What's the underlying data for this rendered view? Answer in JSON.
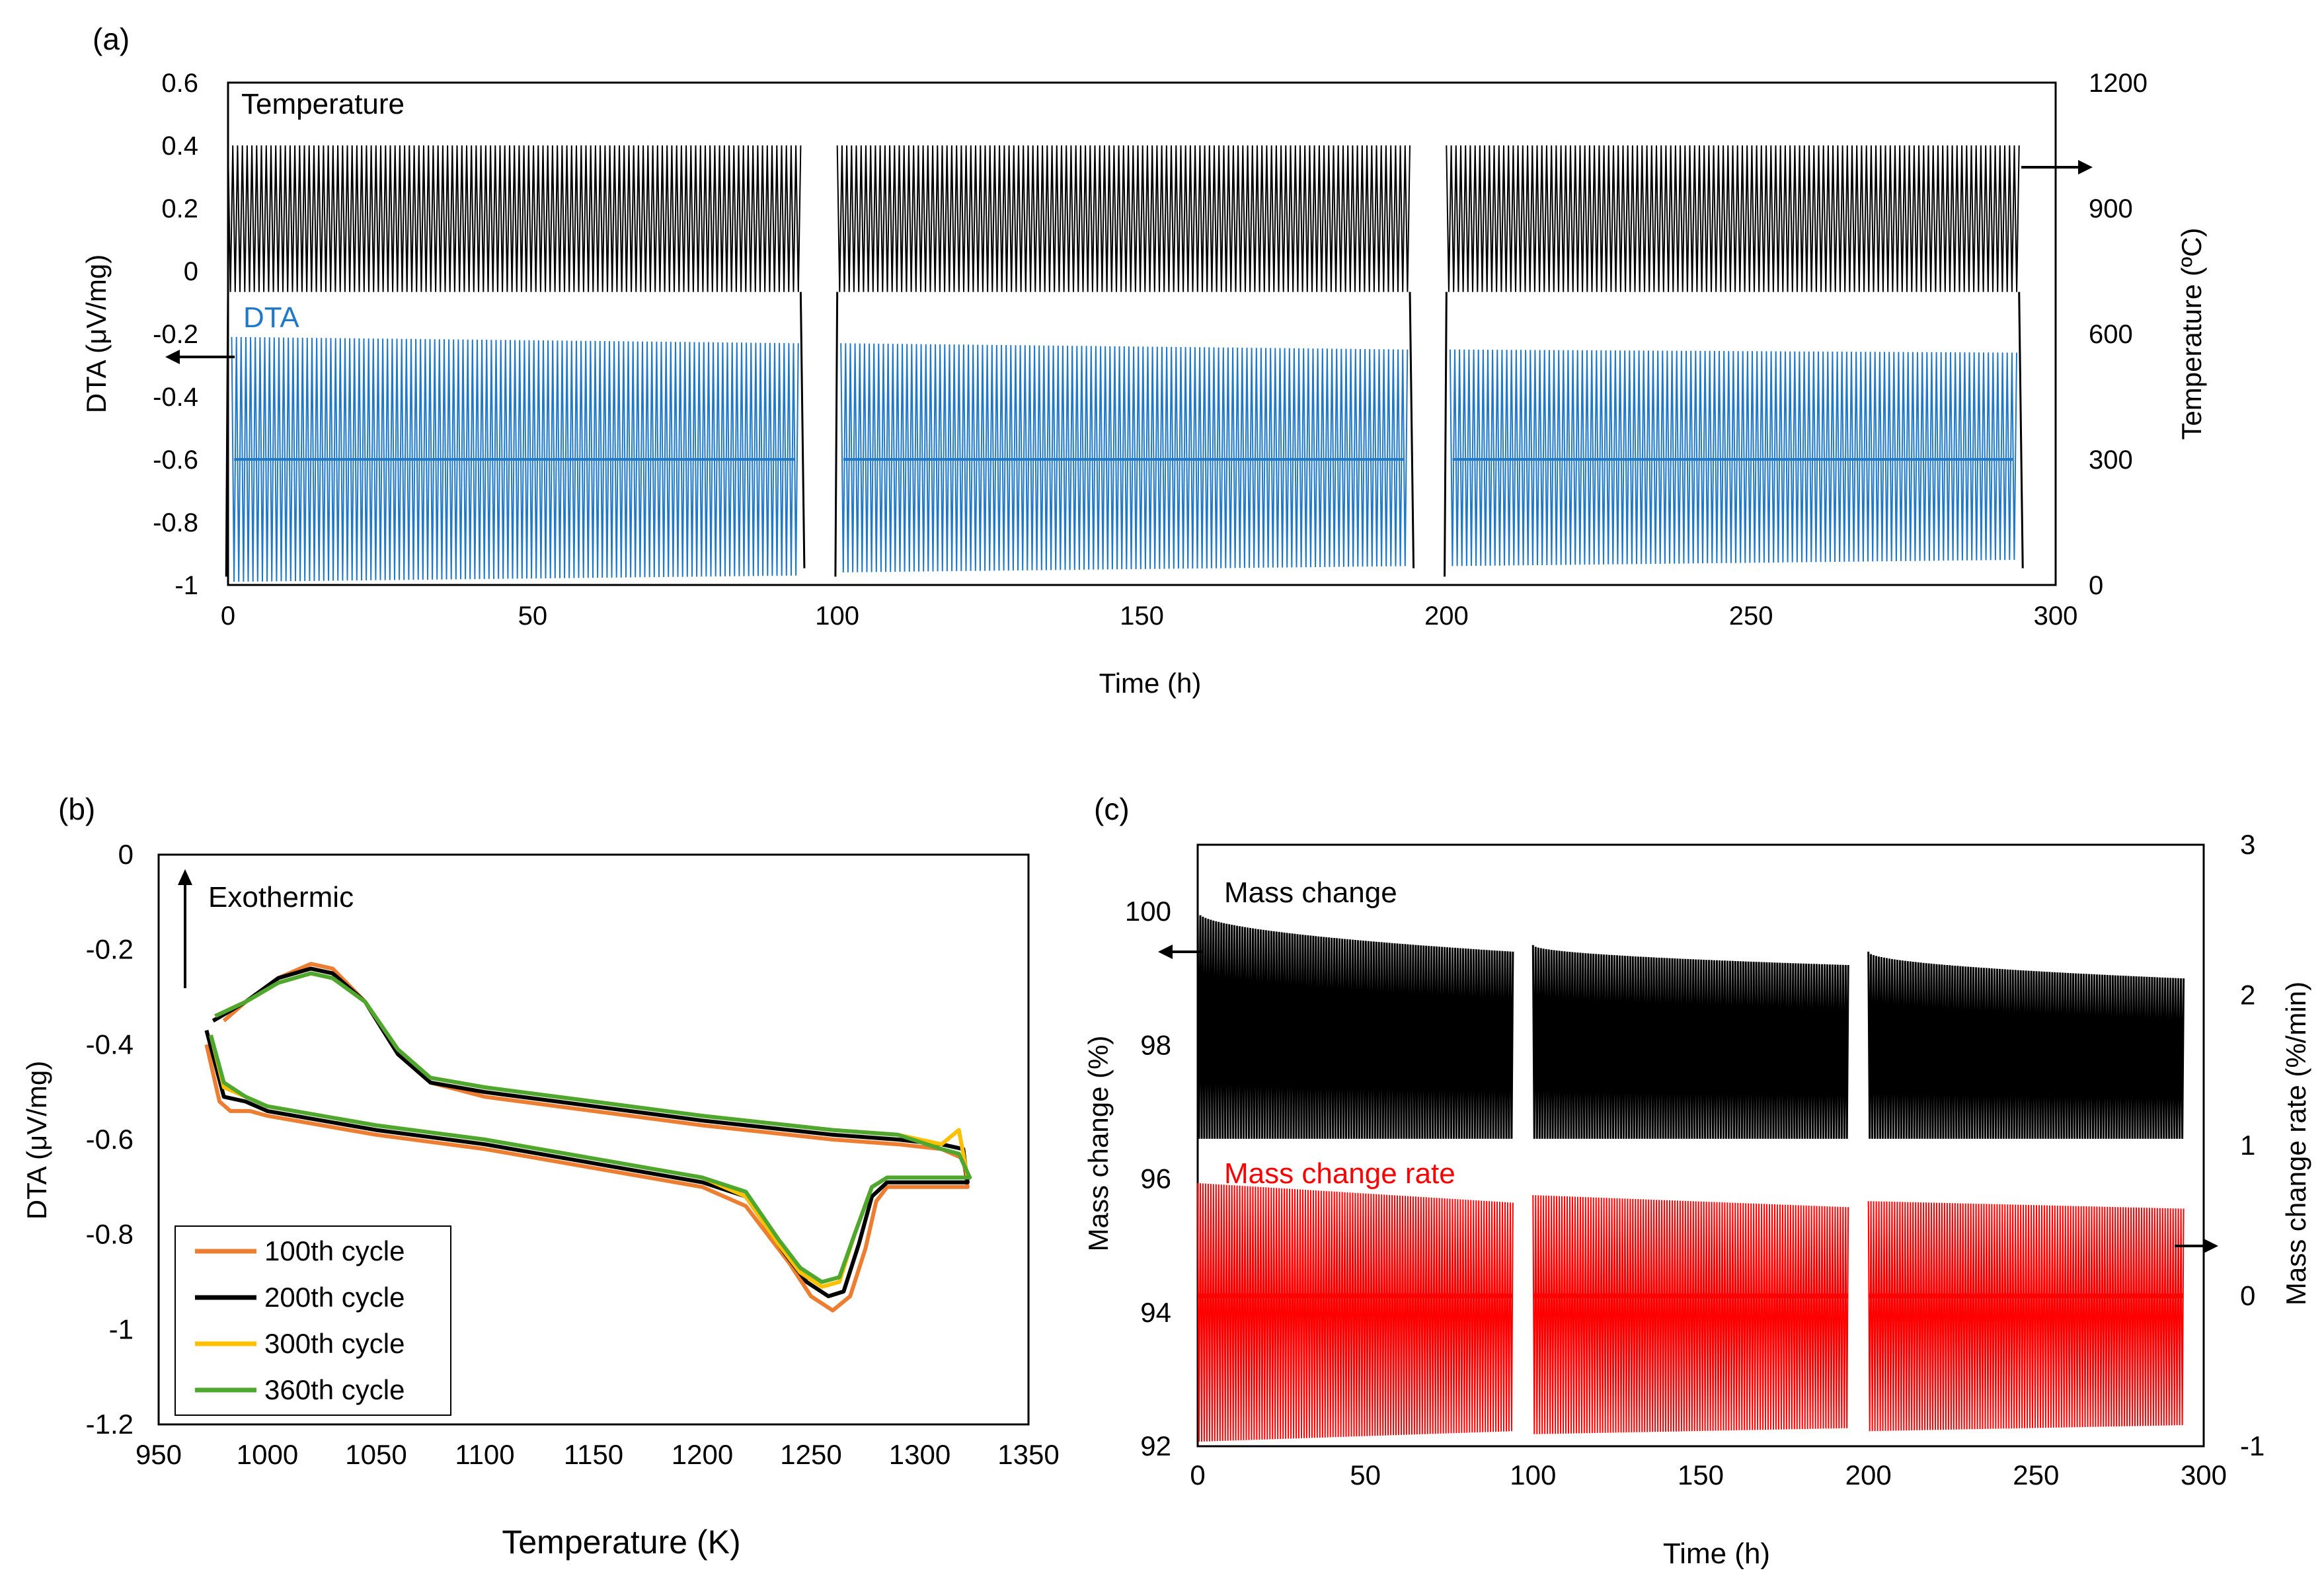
{
  "figure": {
    "panel_labels": [
      "(a)",
      "(b)",
      "(c)"
    ]
  },
  "colors": {
    "black": "#000000",
    "blue": "#1f78c8",
    "red": "#ff0000",
    "orange": "#ed7d31",
    "yellow": "#ffc000",
    "green": "#4ea72e"
  },
  "chart_data": [
    {
      "id": "a",
      "type": "line",
      "title": "",
      "xlabel": "Time (h)",
      "ylabel": "DTA (μV/mg)",
      "y2label": "Temperature (ºC)",
      "xlim": [
        0,
        300
      ],
      "ylim": [
        -1,
        0.6
      ],
      "y2lim": [
        0,
        1200
      ],
      "xticks": [
        "0",
        "50",
        "100",
        "150",
        "200",
        "250",
        "300"
      ],
      "yticks": [
        "-1",
        "-0.8",
        "-0.6",
        "-0.4",
        "-0.2",
        "0",
        "0.2",
        "0.4",
        "0.6"
      ],
      "y2ticks": [
        "0",
        "300",
        "600",
        "900",
        "1200"
      ],
      "segments": [
        [
          0,
          94
        ],
        [
          100,
          194
        ],
        [
          200,
          294
        ]
      ],
      "series": [
        {
          "name": "Temperature",
          "axis": "y2",
          "color": "#000000",
          "cycles_per_segment": 120,
          "high": 1050,
          "low": 700,
          "start_offset_h": 0.5
        },
        {
          "name": "DTA",
          "axis": "y",
          "color": "#1f78c8",
          "cycles_per_segment": 120,
          "max_start": [
            -0.21,
            -0.23,
            -0.25
          ],
          "max_end": [
            -0.23,
            -0.25,
            -0.26
          ],
          "min_start": [
            -0.99,
            -0.96,
            -0.94
          ],
          "min_end": [
            -0.97,
            -0.94,
            -0.92
          ],
          "mid": -0.6
        }
      ],
      "annotations": [
        {
          "text": "Temperature",
          "color": "#000000"
        },
        {
          "text": "DTA",
          "color": "#1f78c8"
        }
      ]
    },
    {
      "id": "b",
      "type": "line",
      "title": "",
      "xlabel": "Temperature (K)",
      "ylabel": "DTA (μV/mg)",
      "xlim": [
        950,
        1350
      ],
      "ylim": [
        -1.2,
        0
      ],
      "xticks": [
        "950",
        "1000",
        "1050",
        "1100",
        "1150",
        "1200",
        "1250",
        "1300",
        "1350"
      ],
      "yticks": [
        "-1.2",
        "-1",
        "-0.8",
        "-0.6",
        "-0.4",
        "-0.2",
        "0"
      ],
      "annotation": "Exothermic",
      "legend_position": "bottom-left",
      "series": [
        {
          "name": "100th cycle",
          "color": "#ed7d31",
          "x": [
            980,
            990,
            1005,
            1020,
            1030,
            1045,
            1060,
            1075,
            1100,
            1150,
            1200,
            1260,
            1290,
            1310,
            1320,
            1322,
            1318,
            1300,
            1285,
            1280,
            1275,
            1268,
            1260,
            1250,
            1240,
            1220,
            1200,
            1150,
            1100,
            1050,
            1000,
            992,
            983,
            978,
            972
          ],
          "y": [
            -0.35,
            -0.31,
            -0.26,
            -0.23,
            -0.24,
            -0.31,
            -0.42,
            -0.48,
            -0.51,
            -0.54,
            -0.57,
            -0.6,
            -0.61,
            -0.62,
            -0.64,
            -0.7,
            -0.7,
            -0.7,
            -0.7,
            -0.73,
            -0.83,
            -0.93,
            -0.96,
            -0.93,
            -0.86,
            -0.74,
            -0.7,
            -0.66,
            -0.62,
            -0.59,
            -0.55,
            -0.54,
            -0.54,
            -0.52,
            -0.4
          ]
        },
        {
          "name": "200th cycle",
          "color": "#000000",
          "x": [
            975,
            990,
            1005,
            1020,
            1030,
            1045,
            1060,
            1075,
            1100,
            1150,
            1200,
            1260,
            1290,
            1310,
            1320,
            1322,
            1318,
            1300,
            1285,
            1278,
            1272,
            1265,
            1258,
            1248,
            1238,
            1220,
            1200,
            1150,
            1100,
            1050,
            1000,
            990,
            980,
            972
          ],
          "y": [
            -0.35,
            -0.31,
            -0.26,
            -0.24,
            -0.25,
            -0.31,
            -0.42,
            -0.48,
            -0.5,
            -0.53,
            -0.56,
            -0.59,
            -0.6,
            -0.61,
            -0.62,
            -0.69,
            -0.69,
            -0.69,
            -0.69,
            -0.72,
            -0.82,
            -0.92,
            -0.93,
            -0.9,
            -0.84,
            -0.72,
            -0.69,
            -0.65,
            -0.61,
            -0.58,
            -0.54,
            -0.52,
            -0.51,
            -0.37
          ]
        },
        {
          "name": "300th cycle",
          "color": "#ffc000",
          "x": [
            976,
            990,
            1005,
            1020,
            1030,
            1045,
            1060,
            1075,
            1100,
            1150,
            1200,
            1260,
            1290,
            1310,
            1318,
            1322,
            1318,
            1300,
            1285,
            1278,
            1270,
            1263,
            1255,
            1245,
            1235,
            1220,
            1200,
            1150,
            1100,
            1050,
            1000,
            990,
            980,
            974
          ],
          "y": [
            -0.34,
            -0.31,
            -0.27,
            -0.25,
            -0.26,
            -0.31,
            -0.41,
            -0.47,
            -0.49,
            -0.52,
            -0.55,
            -0.58,
            -0.59,
            -0.61,
            -0.58,
            -0.68,
            -0.68,
            -0.68,
            -0.68,
            -0.7,
            -0.8,
            -0.9,
            -0.91,
            -0.88,
            -0.82,
            -0.72,
            -0.68,
            -0.64,
            -0.6,
            -0.57,
            -0.53,
            -0.51,
            -0.49,
            -0.38
          ]
        },
        {
          "name": "360th cycle",
          "color": "#4ea72e",
          "x": [
            976,
            990,
            1005,
            1020,
            1030,
            1045,
            1060,
            1075,
            1100,
            1150,
            1200,
            1260,
            1290,
            1310,
            1318,
            1323,
            1318,
            1300,
            1285,
            1278,
            1270,
            1263,
            1255,
            1245,
            1235,
            1220,
            1200,
            1150,
            1100,
            1050,
            1000,
            990,
            980,
            974
          ],
          "y": [
            -0.34,
            -0.31,
            -0.27,
            -0.25,
            -0.26,
            -0.31,
            -0.41,
            -0.47,
            -0.49,
            -0.52,
            -0.55,
            -0.58,
            -0.59,
            -0.62,
            -0.63,
            -0.68,
            -0.68,
            -0.68,
            -0.68,
            -0.7,
            -0.8,
            -0.89,
            -0.9,
            -0.87,
            -0.81,
            -0.71,
            -0.68,
            -0.64,
            -0.6,
            -0.57,
            -0.53,
            -0.51,
            -0.48,
            -0.38
          ]
        }
      ]
    },
    {
      "id": "c",
      "type": "line",
      "title": "",
      "xlabel": "Time (h)",
      "ylabel": "Mass change (%)",
      "y2label": "Mass change rate (%/min)",
      "xlim": [
        0,
        300
      ],
      "ylim": [
        92,
        101
      ],
      "y2lim": [
        -1,
        3
      ],
      "xticks": [
        "0",
        "50",
        "100",
        "150",
        "200",
        "250",
        "300"
      ],
      "yticks": [
        "92",
        "94",
        "96",
        "98",
        "100"
      ],
      "y2ticks": [
        "-1",
        "0",
        "1",
        "2",
        "3"
      ],
      "segments": [
        [
          0,
          94
        ],
        [
          100,
          194
        ],
        [
          200,
          294
        ]
      ],
      "series": [
        {
          "name": "Mass change",
          "axis": "y",
          "color": "#000000",
          "cycles_per_segment": 120,
          "max_start": [
            100.0,
            99.5,
            99.4
          ],
          "max_end": [
            99.4,
            99.2,
            99.0
          ],
          "low": 96.6
        },
        {
          "name": "Mass change rate",
          "axis": "y2",
          "color": "#ff0000",
          "cycles_per_segment": 120,
          "max_start": [
            0.75,
            0.67,
            0.63
          ],
          "max_end": [
            0.62,
            0.59,
            0.58
          ],
          "min_start": [
            -0.97,
            -0.92,
            -0.9
          ],
          "min_end": [
            -0.9,
            -0.88,
            -0.86
          ],
          "mid": 0.0
        }
      ],
      "annotations": [
        {
          "text": "Mass change",
          "color": "#000000"
        },
        {
          "text": "Mass change rate",
          "color": "#ff0000"
        }
      ]
    }
  ]
}
